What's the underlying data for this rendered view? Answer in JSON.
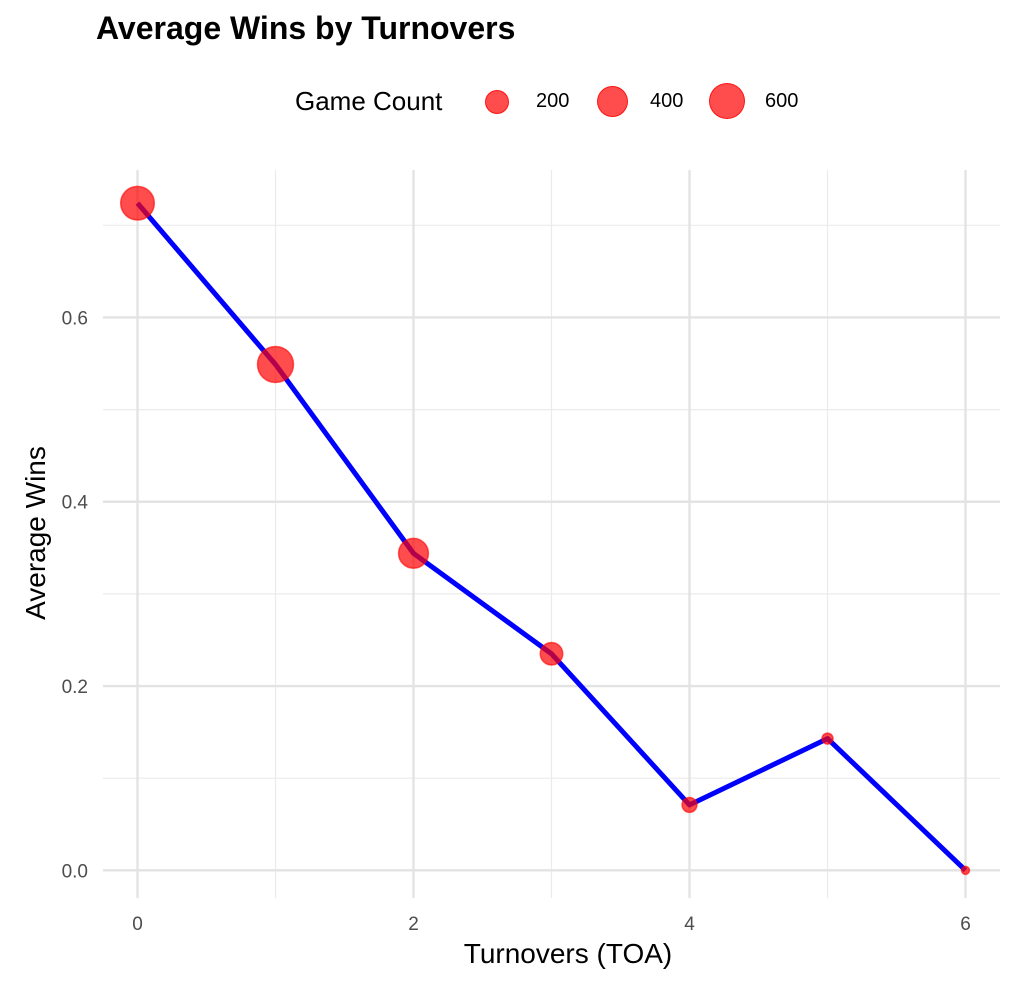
{
  "chart_data": {
    "type": "line",
    "title": "Average Wins by Turnovers",
    "xlabel": "Turnovers (TOA)",
    "ylabel": "Average Wins",
    "xlim": [
      -0.25,
      6.25
    ],
    "ylim": [
      -0.03,
      0.76
    ],
    "x_ticks": [
      0,
      2,
      4,
      6
    ],
    "x_tick_labels": [
      "0",
      "2",
      "4",
      "6"
    ],
    "x_minor_ticks": [
      1,
      3,
      5
    ],
    "y_ticks": [
      0.0,
      0.2,
      0.4,
      0.6
    ],
    "y_tick_labels": [
      "0.0",
      "0.2",
      "0.4",
      "0.6"
    ],
    "y_minor_ticks": [
      0.1,
      0.3,
      0.5,
      0.7
    ],
    "grid": true,
    "legend": {
      "title": "Game Count",
      "placement": "top",
      "entries": [
        {
          "label": "200",
          "value": 200
        },
        {
          "label": "400",
          "value": 400
        },
        {
          "label": "600",
          "value": 600
        }
      ]
    },
    "series": [
      {
        "x": [
          0,
          1,
          2,
          3,
          4,
          5,
          6
        ],
        "y": [
          0.724,
          0.549,
          0.344,
          0.235,
          0.071,
          0.143,
          0.0
        ],
        "game_count": [
          560,
          640,
          440,
          250,
          110,
          60,
          25
        ],
        "line_color": "#0000ff",
        "point_color": "#ff0000"
      }
    ]
  }
}
